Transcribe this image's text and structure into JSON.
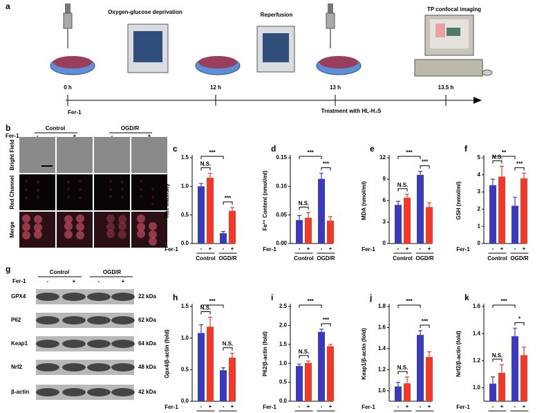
{
  "panel_a": {
    "label": "a",
    "steps": [
      "Oxygen-glucose deprivation",
      "Reperfusion",
      "TP confocal imaging"
    ],
    "times": [
      "0 h",
      "12 h",
      "13 h",
      "13.5 h"
    ],
    "drug": "Fer-1",
    "treatment": "Treatment with HL-H₂S"
  },
  "panel_b": {
    "label": "b",
    "groups": [
      "Control",
      "OGD/R"
    ],
    "drug": "Fer-1",
    "signs": [
      "-",
      "+",
      "-",
      "+"
    ],
    "rows": [
      "Bright Field",
      "Red Channel",
      "Merge"
    ]
  },
  "panel_g": {
    "label": "g",
    "groups": [
      "Control",
      "OGD/R"
    ],
    "drug": "Fer-1",
    "signs": [
      "-",
      "+",
      "-",
      "+"
    ],
    "rows": [
      {
        "name": "GPX4",
        "size": "22 kDa"
      },
      {
        "name": "P62",
        "size": "62 kDa"
      },
      {
        "name": "Keap1",
        "size": "64 kDa"
      },
      {
        "name": "Nrf2",
        "size": "48 kDa"
      },
      {
        "name": "β-actin",
        "size": "42 kDa"
      }
    ]
  },
  "chart_data": [
    {
      "type": "bar",
      "label": "c",
      "ylabel": "Rel. Intensity",
      "drug": "Fer-1",
      "categories": [
        "Control",
        "OGD/R"
      ],
      "ylim": [
        0,
        1.5
      ],
      "yticks": [
        {
          "value": 0,
          "label": "0.0"
        },
        0.5,
        {
          "value": 1,
          "label": "1.0"
        },
        1.5
      ],
      "series": [
        {
          "name": "-",
          "color": "#3b3bb8",
          "values": [
            1.0,
            0.18
          ],
          "errors": [
            0.05,
            0.03
          ]
        },
        {
          "name": "+",
          "color": "#ee3a2a",
          "values": [
            1.15,
            0.57
          ],
          "errors": [
            0.08,
            0.06
          ]
        }
      ],
      "annotations": [
        {
          "text": "N.S.",
          "group": 0
        },
        {
          "text": "***",
          "group": 1
        },
        {
          "text": "***",
          "series": 0
        }
      ]
    },
    {
      "type": "bar",
      "label": "d",
      "ylabel": "Fe²⁺ Content (nmol/ml)",
      "drug": "Fer-1",
      "categories": [
        "Control",
        "OGD/R"
      ],
      "ylim": [
        0,
        0.15
      ],
      "yticks": [
        {
          "value": 0,
          "label": "0.00"
        },
        0.05,
        {
          "value": 0.1,
          "label": "0.10"
        },
        0.15
      ],
      "series": [
        {
          "name": "-",
          "color": "#3b3bb8",
          "values": [
            0.041,
            0.113
          ],
          "errors": [
            0.008,
            0.01
          ]
        },
        {
          "name": "+",
          "color": "#ee3a2a",
          "values": [
            0.045,
            0.04
          ],
          "errors": [
            0.009,
            0.007
          ]
        }
      ],
      "annotations": [
        {
          "text": "N.S.",
          "group": 0
        },
        {
          "text": "***",
          "group": 1
        },
        {
          "text": "***",
          "series": 0
        }
      ]
    },
    {
      "type": "bar",
      "label": "e",
      "ylabel": "MDA (nmol/ml)",
      "drug": "Fer-1",
      "categories": [
        "Control",
        "OGD/R"
      ],
      "ylim": [
        0,
        12
      ],
      "yticks": [
        0,
        3,
        6,
        9,
        12
      ],
      "series": [
        {
          "name": "-",
          "color": "#3b3bb8",
          "values": [
            5.4,
            9.6
          ],
          "errors": [
            0.5,
            0.5
          ]
        },
        {
          "name": "+",
          "color": "#ee3a2a",
          "values": [
            6.4,
            5.1
          ],
          "errors": [
            0.5,
            0.6
          ]
        }
      ],
      "annotations": [
        {
          "text": "N.S.",
          "group": 0
        },
        {
          "text": "***",
          "group": 1
        },
        {
          "text": "***",
          "series": 0
        }
      ]
    },
    {
      "type": "bar",
      "label": "f",
      "ylabel": "GSH (nmol/ml)",
      "drug": "Fer-1",
      "categories": [
        "Control",
        "OGD/R"
      ],
      "ylim": [
        0,
        5
      ],
      "yticks": [
        0,
        1,
        2,
        3,
        4,
        5
      ],
      "series": [
        {
          "name": "-",
          "color": "#3b3bb8",
          "values": [
            3.4,
            2.2
          ],
          "errors": [
            0.35,
            0.5
          ]
        },
        {
          "name": "+",
          "color": "#ee3a2a",
          "values": [
            3.9,
            3.8
          ],
          "errors": [
            0.6,
            0.3
          ]
        }
      ],
      "annotations": [
        {
          "text": "N.S.",
          "group": 0
        },
        {
          "text": "***",
          "group": 1
        },
        {
          "text": "**",
          "series": 0
        }
      ]
    },
    {
      "type": "bar",
      "label": "h",
      "ylabel": "Gpx4/β-actin (fold)",
      "drug": "Fer-1",
      "categories": [
        "Control",
        "OGD/R"
      ],
      "ylim": [
        0,
        1.5
      ],
      "yticks": [
        {
          "value": 0,
          "label": "0.0"
        },
        0.5,
        {
          "value": 1,
          "label": "1.0"
        },
        1.5
      ],
      "series": [
        {
          "name": "-",
          "color": "#3b3bb8",
          "values": [
            1.08,
            0.49
          ],
          "errors": [
            0.13,
            0.04
          ]
        },
        {
          "name": "+",
          "color": "#ee3a2a",
          "values": [
            1.18,
            0.69
          ],
          "errors": [
            0.15,
            0.07
          ]
        }
      ],
      "annotations": [
        {
          "text": "N.S.",
          "group": 0
        },
        {
          "text": "N.S.",
          "group": 1
        },
        {
          "text": "***",
          "series": 0
        }
      ]
    },
    {
      "type": "bar",
      "label": "i",
      "ylabel": "P62/β-actin (fold)",
      "drug": "Fer-1",
      "categories": [
        "Control",
        "OGD/R"
      ],
      "ylim": [
        0,
        2.5
      ],
      "yticks": [
        {
          "value": 0,
          "label": "0.0"
        },
        0.5,
        {
          "value": 1,
          "label": "1.0"
        },
        1.5,
        {
          "value": 2,
          "label": "2.0"
        },
        2.5
      ],
      "series": [
        {
          "name": "-",
          "color": "#3b3bb8",
          "values": [
            0.93,
            1.83
          ],
          "errors": [
            0.05,
            0.07
          ]
        },
        {
          "name": "+",
          "color": "#ee3a2a",
          "values": [
            1.01,
            1.45
          ],
          "errors": [
            0.05,
            0.05
          ]
        }
      ],
      "annotations": [
        {
          "text": "N.S.",
          "group": 0
        },
        {
          "text": "***",
          "group": 1
        },
        {
          "text": "***",
          "series": 0
        }
      ]
    },
    {
      "type": "bar",
      "label": "j",
      "ylabel": "Keap1/β-actin (fold)",
      "drug": "Fer-1",
      "categories": [
        "Control",
        "OGD/R"
      ],
      "ylim": [
        0.9,
        1.8
      ],
      "yticks": [
        {
          "value": 1,
          "label": "1.0"
        },
        1.2,
        1.4,
        1.6,
        1.8
      ],
      "series": [
        {
          "name": "-",
          "color": "#3b3bb8",
          "values": [
            1.04,
            1.53
          ],
          "errors": [
            0.04,
            0.04
          ]
        },
        {
          "name": "+",
          "color": "#ee3a2a",
          "values": [
            1.07,
            1.32
          ],
          "errors": [
            0.06,
            0.05
          ]
        }
      ],
      "annotations": [
        {
          "text": "N.S.",
          "group": 0
        },
        {
          "text": "***",
          "group": 1
        },
        {
          "text": "***",
          "series": 0
        }
      ]
    },
    {
      "type": "bar",
      "label": "k",
      "ylabel": "Nrf2/β-actin (fold)",
      "drug": "Fer-1",
      "categories": [
        "Control",
        "OGD/R"
      ],
      "ylim": [
        0.9,
        1.6
      ],
      "yticks": [
        {
          "value": 1,
          "label": "1.0"
        },
        1.2,
        1.4,
        1.6
      ],
      "series": [
        {
          "name": "-",
          "color": "#3b3bb8",
          "values": [
            1.03,
            1.38
          ],
          "errors": [
            0.05,
            0.06
          ]
        },
        {
          "name": "+",
          "color": "#ee3a2a",
          "values": [
            1.11,
            1.24
          ],
          "errors": [
            0.06,
            0.06
          ]
        }
      ],
      "annotations": [
        {
          "text": "N.S.",
          "group": 0
        },
        {
          "text": "*",
          "group": 1
        },
        {
          "text": "***",
          "series": 0
        }
      ]
    }
  ]
}
